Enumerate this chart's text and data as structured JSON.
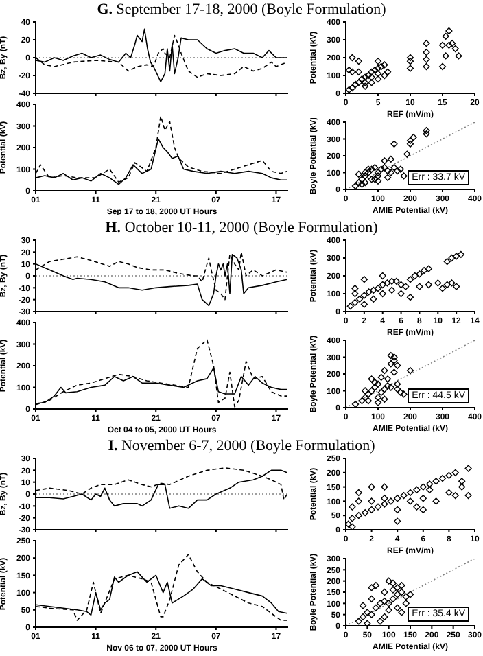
{
  "chart_data": [
    {
      "type": "line",
      "title": "G. September 17-18, 2000 (Boyle Formulation)",
      "ylabel": "Bz, By (nT)",
      "xlim": [
        "2000-09-17T01:00",
        "2000-09-18T19:00"
      ],
      "xticks": [
        {
          "value": "2000-09-17T01:00",
          "label": null
        },
        {
          "value": "2000-09-17T11:00",
          "label": null
        },
        {
          "value": "2000-09-17T21:00",
          "label": null
        },
        {
          "value": "2000-09-18T07:00",
          "label": null
        },
        {
          "value": "2000-09-18T17:00",
          "label": null
        }
      ],
      "ylim": [
        -40,
        40
      ],
      "yticks": [
        -40,
        -20,
        0,
        20,
        40
      ],
      "tick_labels": "y",
      "ref_lines": [
        {
          "axis": "y",
          "value": 0,
          "line_style": "dotted",
          "color": "#808080"
        }
      ],
      "series": [
        {
          "color": "#000000",
          "line_style": "solid",
          "x": [
            "2000-09-17T01:00",
            "2000-09-17T02:30",
            "2000-09-17T04:06",
            "2000-09-17T05:36",
            "2000-09-17T07:12",
            "2000-09-17T08:42",
            "2000-09-17T10:12",
            "2000-09-17T11:48",
            "2000-09-17T13:18",
            "2000-09-17T14:48",
            "2000-09-17T16:00",
            "2000-09-17T16:48",
            "2000-09-17T17:30",
            "2000-09-17T17:54",
            "2000-09-17T18:42",
            "2000-09-17T19:06",
            "2000-09-17T19:36",
            "2000-09-17T20:06",
            "2000-09-17T20:36",
            "2000-09-17T21:48",
            "2000-09-17T22:30",
            "2000-09-17T22:54",
            "2000-09-17T23:18",
            "2000-09-17T23:42",
            "2000-09-18T00:06",
            "2000-09-18T00:42",
            "2000-09-18T01:12",
            "2000-09-18T02:24",
            "2000-09-18T03:54",
            "2000-09-18T04:42",
            "2000-09-18T05:30",
            "2000-09-18T07:00",
            "2000-09-18T08:30",
            "2000-09-18T10:06",
            "2000-09-18T11:36",
            "2000-09-18T13:12",
            "2000-09-18T14:42",
            "2000-09-18T15:48",
            "2000-09-18T17:00",
            "2000-09-18T18:48"
          ],
          "values": [
            -3,
            -5,
            0,
            -3,
            2,
            5,
            0,
            3,
            -2,
            -5,
            5,
            0,
            15,
            25,
            18,
            32,
            10,
            -5,
            -10,
            -27,
            -18,
            10,
            -15,
            15,
            -18,
            0,
            22,
            20,
            20,
            15,
            10,
            5,
            8,
            10,
            5,
            5,
            0,
            8,
            0,
            0
          ]
        },
        {
          "color": "#000000",
          "line_style": "dashed",
          "x": [
            "2000-09-17T01:00",
            "2000-09-17T02:30",
            "2000-09-17T04:06",
            "2000-09-17T07:12",
            "2000-09-17T11:00",
            "2000-09-17T14:48",
            "2000-09-17T16:24",
            "2000-09-17T17:54",
            "2000-09-17T19:30",
            "2000-09-17T20:36",
            "2000-09-17T21:24",
            "2000-09-17T22:12",
            "2000-09-17T22:30",
            "2000-09-17T23:18",
            "2000-09-18T00:06",
            "2000-09-18T00:42",
            "2000-09-18T01:12",
            "2000-09-18T02:24",
            "2000-09-18T03:54",
            "2000-09-18T05:30",
            "2000-09-18T07:48",
            "2000-09-18T10:06",
            "2000-09-18T11:36",
            "2000-09-18T13:12",
            "2000-09-18T14:42",
            "2000-09-18T16:12",
            "2000-09-18T17:00",
            "2000-09-18T18:48"
          ],
          "values": [
            0,
            -8,
            -10,
            -5,
            -3,
            -5,
            -15,
            -10,
            -8,
            -10,
            5,
            10,
            5,
            0,
            25,
            15,
            5,
            -15,
            -22,
            -18,
            -20,
            -18,
            -10,
            -15,
            -12,
            -5,
            -10,
            -5
          ]
        }
      ]
    },
    {
      "type": "line",
      "xlabel": "Sep 17 to 18, 2000 UT Hours",
      "ylabel": "Potential (kV)",
      "xlim": [
        "2000-09-17T01:00",
        "2000-09-18T19:00"
      ],
      "xticks": [
        {
          "value": "2000-09-17T01:00",
          "label": "01"
        },
        {
          "value": "2000-09-17T11:00",
          "label": "11"
        },
        {
          "value": "2000-09-17T21:00",
          "label": "21"
        },
        {
          "value": "2000-09-18T07:00",
          "label": "07"
        },
        {
          "value": "2000-09-18T17:00",
          "label": "17"
        }
      ],
      "ylim": [
        0,
        400
      ],
      "yticks": [
        0,
        100,
        200,
        300,
        400
      ],
      "series": [
        {
          "color": "#000000",
          "line_style": "solid",
          "x": [
            "2000-09-17T01:00",
            "2000-09-17T02:30",
            "2000-09-17T04:06",
            "2000-09-17T05:36",
            "2000-09-17T07:12",
            "2000-09-17T08:42",
            "2000-09-17T10:12",
            "2000-09-17T11:48",
            "2000-09-17T13:18",
            "2000-09-17T14:48",
            "2000-09-17T16:00",
            "2000-09-17T17:12",
            "2000-09-17T18:42",
            "2000-09-17T20:12",
            "2000-09-17T21:24",
            "2000-09-17T22:12",
            "2000-09-17T22:54",
            "2000-09-17T23:42",
            "2000-09-18T00:42",
            "2000-09-18T01:36",
            "2000-09-18T03:12",
            "2000-09-18T05:30",
            "2000-09-18T07:48",
            "2000-09-18T10:06",
            "2000-09-18T12:24",
            "2000-09-18T14:42",
            "2000-09-18T16:12",
            "2000-09-18T17:48",
            "2000-09-18T18:48"
          ],
          "values": [
            60,
            70,
            60,
            80,
            50,
            60,
            45,
            80,
            60,
            30,
            60,
            120,
            80,
            100,
            240,
            200,
            180,
            150,
            160,
            100,
            90,
            80,
            90,
            80,
            90,
            80,
            60,
            50,
            50
          ]
        },
        {
          "color": "#000000",
          "line_style": "dashed",
          "x": [
            "2000-09-17T01:00",
            "2000-09-17T01:48",
            "2000-09-17T03:18",
            "2000-09-17T05:36",
            "2000-09-17T07:54",
            "2000-09-17T11:00",
            "2000-09-17T13:18",
            "2000-09-17T14:48",
            "2000-09-17T16:24",
            "2000-09-17T17:30",
            "2000-09-17T19:30",
            "2000-09-17T21:00",
            "2000-09-17T21:48",
            "2000-09-17T22:30",
            "2000-09-17T23:18",
            "2000-09-18T00:06",
            "2000-09-18T00:48",
            "2000-09-18T02:24",
            "2000-09-18T04:42",
            "2000-09-18T07:48",
            "2000-09-18T10:06",
            "2000-09-18T12:24",
            "2000-09-18T14:42",
            "2000-09-18T16:12",
            "2000-09-18T17:48",
            "2000-09-18T18:48"
          ],
          "values": [
            80,
            120,
            60,
            70,
            60,
            60,
            100,
            40,
            60,
            130,
            90,
            200,
            345,
            280,
            320,
            200,
            150,
            110,
            90,
            80,
            100,
            120,
            140,
            90,
            80,
            90
          ]
        }
      ]
    },
    {
      "type": "scatter",
      "xlabel": "REF (mV/m)",
      "ylabel": "Potential (kV)",
      "xlim": [
        0,
        20
      ],
      "xticks": [
        0,
        5,
        10,
        15,
        20
      ],
      "ylim": [
        0,
        400
      ],
      "yticks": [
        0,
        100,
        200,
        300,
        400
      ],
      "series": [
        {
          "color": "#000000",
          "marker": "diamond",
          "x": [
            0.5,
            1,
            1,
            1.5,
            2,
            2,
            2.5,
            3,
            3,
            3.5,
            4,
            4,
            4.5,
            5,
            5,
            5.5,
            6,
            6,
            6.5,
            1,
            2,
            3,
            4,
            5,
            10,
            10,
            10,
            12.5,
            12.5,
            12.5,
            12.5,
            15,
            15,
            15.5,
            15.5,
            16,
            16.5,
            16,
            17,
            17.5,
            5,
            0.5
          ],
          "values": [
            20,
            30,
            200,
            50,
            60,
            180,
            80,
            90,
            40,
            100,
            120,
            60,
            130,
            140,
            80,
            150,
            160,
            100,
            120,
            120,
            120,
            60,
            90,
            110,
            140,
            180,
            200,
            150,
            190,
            230,
            280,
            150,
            270,
            320,
            210,
            350,
            280,
            270,
            250,
            210,
            180,
            130
          ]
        }
      ]
    },
    {
      "type": "scatter",
      "xlabel": "AMIE Potential (kV)",
      "ylabel": "Boyle Potential (kV)",
      "xlim": [
        0,
        400
      ],
      "xticks": [
        0,
        100,
        200,
        300,
        400
      ],
      "ylim": [
        0,
        400
      ],
      "yticks": [
        0,
        100,
        200,
        300,
        400
      ],
      "annotations": [
        "Err : 33.7 kV"
      ],
      "series": [
        {
          "color": "#000000",
          "marker": "diamond",
          "x": [
            30,
            40,
            50,
            60,
            70,
            80,
            90,
            100,
            60,
            50,
            80,
            100,
            110,
            120,
            70,
            40,
            90,
            130,
            140,
            150,
            150,
            160,
            170,
            180,
            190,
            200,
            200,
            210,
            250,
            250,
            120,
            140,
            60,
            100,
            130
          ],
          "values": [
            20,
            40,
            60,
            80,
            100,
            120,
            130,
            100,
            40,
            30,
            60,
            80,
            120,
            130,
            120,
            90,
            60,
            110,
            100,
            270,
            130,
            110,
            120,
            80,
            210,
            270,
            290,
            310,
            330,
            350,
            170,
            180,
            100,
            50,
            70
          ]
        },
        {
          "type": "line",
          "color": "#808080",
          "line_style": "dotted",
          "x": [
            0,
            400
          ],
          "values": [
            0,
            400
          ]
        }
      ]
    },
    {
      "type": "line",
      "title": "H. October 10-11, 2000 (Boyle Formulation)",
      "ylabel": "Bz, By (nT)",
      "xlim": [
        "2000-10-04T01:00",
        "2000-10-05T19:00"
      ],
      "xticks": [
        {
          "value": "2000-10-04T01:00",
          "label": null
        },
        {
          "value": "2000-10-04T11:00",
          "label": null
        },
        {
          "value": "2000-10-04T21:00",
          "label": null
        },
        {
          "value": "2000-10-05T07:00",
          "label": null
        },
        {
          "value": "2000-10-05T17:00",
          "label": null
        }
      ],
      "ylim": [
        -30,
        30
      ],
      "yticks": [
        -30,
        -20,
        -10,
        0,
        10,
        20,
        30
      ],
      "tick_labels": "y",
      "ref_lines": [
        {
          "axis": "y",
          "value": 0,
          "line_style": "dotted",
          "color": "#808080"
        }
      ],
      "series": [
        {
          "color": "#000000",
          "line_style": "solid",
          "x": [
            "2000-10-04T01:00",
            "2000-10-04T03:18",
            "2000-10-04T05:36",
            "2000-10-04T07:12",
            "2000-10-04T07:54",
            "2000-10-04T10:12",
            "2000-10-04T12:30",
            "2000-10-04T14:48",
            "2000-10-04T16:24",
            "2000-10-04T18:42",
            "2000-10-04T21:00",
            "2000-10-04T23:18",
            "2000-10-05T02:24",
            "2000-10-05T03:54",
            "2000-10-05T04:42",
            "2000-10-05T05:48",
            "2000-10-05T06:36",
            "2000-10-05T07:00",
            "2000-10-05T07:24",
            "2000-10-05T07:48",
            "2000-10-05T08:12",
            "2000-10-05T08:30",
            "2000-10-05T08:54",
            "2000-10-05T09:18",
            "2000-10-05T09:42",
            "2000-10-05T10:30",
            "2000-10-05T11:12",
            "2000-10-05T11:36",
            "2000-10-05T12:24",
            "2000-10-05T14:42",
            "2000-10-05T17:00",
            "2000-10-05T18:48"
          ],
          "values": [
            10,
            5,
            0,
            -3,
            -2,
            -3,
            -5,
            -10,
            -10,
            -12,
            -10,
            -9,
            -8,
            -7,
            -20,
            -25,
            -15,
            0,
            10,
            5,
            10,
            0,
            10,
            -15,
            18,
            15,
            5,
            -15,
            -10,
            -8,
            -5,
            -3
          ]
        },
        {
          "color": "#000000",
          "line_style": "dashed",
          "x": [
            "2000-10-04T01:00",
            "2000-10-04T03:18",
            "2000-10-04T05:36",
            "2000-10-04T07:54",
            "2000-10-04T10:12",
            "2000-10-04T13:18",
            "2000-10-04T14:48",
            "2000-10-04T16:24",
            "2000-10-04T17:54",
            "2000-10-04T20:12",
            "2000-10-04T22:30",
            "2000-10-05T00:48",
            "2000-10-05T03:12",
            "2000-10-05T03:54",
            "2000-10-05T04:42",
            "2000-10-05T05:30",
            "2000-10-05T05:48",
            "2000-10-05T06:12",
            "2000-10-05T07:00",
            "2000-10-05T07:48",
            "2000-10-05T08:30",
            "2000-10-05T08:54",
            "2000-10-05T09:18",
            "2000-10-05T10:06",
            "2000-10-05T10:48",
            "2000-10-05T11:12",
            "2000-10-05T12:00",
            "2000-10-05T13:12",
            "2000-10-05T14:42",
            "2000-10-05T17:00",
            "2000-10-05T18:48"
          ],
          "values": [
            5,
            12,
            14,
            16,
            13,
            8,
            12,
            10,
            7,
            5,
            5,
            2,
            0,
            0,
            -5,
            10,
            15,
            5,
            -12,
            -15,
            -20,
            0,
            18,
            10,
            5,
            20,
            0,
            5,
            0,
            5,
            3
          ]
        }
      ]
    },
    {
      "type": "line",
      "xlabel": "Oct 04 to 05, 2000 UT Hours",
      "ylabel": "Potential (kV)",
      "xlim": [
        "2000-10-04T01:00",
        "2000-10-05T19:00"
      ],
      "xticks": [
        {
          "value": "2000-10-04T01:00",
          "label": "01"
        },
        {
          "value": "2000-10-04T11:00",
          "label": "11"
        },
        {
          "value": "2000-10-04T21:00",
          "label": "21"
        },
        {
          "value": "2000-10-05T07:00",
          "label": "07"
        },
        {
          "value": "2000-10-05T17:00",
          "label": "17"
        }
      ],
      "ylim": [
        0,
        400
      ],
      "yticks": [
        0,
        100,
        200,
        300,
        400
      ],
      "series": [
        {
          "color": "#000000",
          "line_style": "solid",
          "x": [
            "2000-10-04T01:00",
            "2000-10-04T02:30",
            "2000-10-04T04:06",
            "2000-10-04T05:12",
            "2000-10-04T06:00",
            "2000-10-04T07:54",
            "2000-10-04T10:12",
            "2000-10-04T12:30",
            "2000-10-04T14:06",
            "2000-10-04T15:36",
            "2000-10-04T17:12",
            "2000-10-04T18:42",
            "2000-10-04T21:00",
            "2000-10-04T23:18",
            "2000-10-05T01:36",
            "2000-10-05T03:54",
            "2000-10-05T05:30",
            "2000-10-05T06:36",
            "2000-10-05T07:24",
            "2000-10-05T08:30",
            "2000-10-05T10:06",
            "2000-10-05T11:12",
            "2000-10-05T12:24",
            "2000-10-05T13:30",
            "2000-10-05T14:42",
            "2000-10-05T16:12",
            "2000-10-05T17:48",
            "2000-10-05T18:48"
          ],
          "values": [
            25,
            30,
            60,
            100,
            75,
            80,
            100,
            110,
            150,
            130,
            150,
            120,
            120,
            110,
            100,
            130,
            140,
            190,
            80,
            70,
            70,
            150,
            110,
            150,
            120,
            100,
            90,
            90
          ]
        },
        {
          "color": "#000000",
          "line_style": "dashed",
          "x": [
            "2000-10-04T01:00",
            "2000-10-04T03:18",
            "2000-10-04T05:36",
            "2000-10-04T07:54",
            "2000-10-04T10:12",
            "2000-10-04T12:30",
            "2000-10-04T14:48",
            "2000-10-04T17:12",
            "2000-10-04T19:30",
            "2000-10-04T21:48",
            "2000-10-05T00:06",
            "2000-10-05T02:24",
            "2000-10-05T03:54",
            "2000-10-05T05:30",
            "2000-10-05T06:36",
            "2000-10-05T07:24",
            "2000-10-05T08:30",
            "2000-10-05T09:18",
            "2000-10-05T10:06",
            "2000-10-05T10:48",
            "2000-10-05T12:00",
            "2000-10-05T13:12",
            "2000-10-05T14:42",
            "2000-10-05T16:12",
            "2000-10-05T17:48",
            "2000-10-05T18:48"
          ],
          "values": [
            20,
            40,
            80,
            110,
            120,
            140,
            160,
            150,
            130,
            120,
            110,
            100,
            280,
            320,
            200,
            30,
            50,
            170,
            10,
            40,
            220,
            140,
            150,
            80,
            60,
            60
          ]
        }
      ]
    },
    {
      "type": "scatter",
      "xlabel": "REF (mV/m)",
      "ylabel": "Potential (kV)",
      "xlim": [
        0,
        14
      ],
      "xticks": [
        0,
        2,
        4,
        6,
        8,
        10,
        12,
        14
      ],
      "ylim": [
        0,
        400
      ],
      "yticks": [
        0,
        100,
        200,
        300,
        400
      ],
      "series": [
        {
          "color": "#000000",
          "marker": "diamond",
          "x": [
            0.5,
            1,
            1,
            1.5,
            2,
            2,
            2.5,
            3,
            3,
            3.5,
            4,
            4,
            4.5,
            5,
            5,
            5.5,
            6,
            6,
            4,
            1,
            7,
            7.5,
            8,
            8.5,
            9,
            9,
            8,
            7,
            10,
            11,
            11.5,
            12,
            12.5,
            11,
            11.5,
            12,
            10.5,
            6.5,
            2
          ],
          "values": [
            30,
            50,
            100,
            70,
            90,
            40,
            110,
            120,
            70,
            130,
            150,
            100,
            160,
            170,
            120,
            170,
            150,
            100,
            200,
            130,
            180,
            200,
            210,
            230,
            240,
            150,
            140,
            80,
            160,
            280,
            300,
            310,
            320,
            150,
            160,
            140,
            130,
            140,
            180
          ]
        }
      ]
    },
    {
      "type": "scatter",
      "xlabel": "AMIE Potential (kV)",
      "ylabel": "Boyle Potential (kV)",
      "xlim": [
        0,
        400
      ],
      "xticks": [
        0,
        100,
        200,
        300,
        400
      ],
      "ylim": [
        0,
        400
      ],
      "yticks": [
        0,
        100,
        200,
        300,
        400
      ],
      "annotations": [
        "Err : 44.5 kV"
      ],
      "series": [
        {
          "color": "#000000",
          "marker": "diamond",
          "x": [
            30,
            50,
            60,
            70,
            80,
            90,
            100,
            80,
            100,
            110,
            120,
            130,
            140,
            150,
            140,
            150,
            140,
            160,
            150,
            120,
            160,
            200,
            170,
            180,
            120,
            90,
            110,
            70,
            60,
            130,
            160,
            100
          ],
          "values": [
            20,
            40,
            60,
            80,
            100,
            120,
            140,
            170,
            60,
            90,
            110,
            130,
            120,
            300,
            310,
            280,
            260,
            250,
            210,
            220,
            110,
            220,
            90,
            80,
            50,
            150,
            180,
            40,
            100,
            170,
            140,
            30
          ]
        },
        {
          "type": "line",
          "color": "#808080",
          "line_style": "dotted",
          "x": [
            0,
            400
          ],
          "values": [
            0,
            400
          ]
        }
      ]
    },
    {
      "type": "line",
      "title": "I. November 6-7, 2000 (Boyle Formulation)",
      "ylabel": "Bz, By (nT)",
      "xlim": [
        "2000-11-06T01:00",
        "2000-11-07T19:00"
      ],
      "xticks": [
        {
          "value": "2000-11-06T01:00",
          "label": null
        },
        {
          "value": "2000-11-06T11:00",
          "label": null
        },
        {
          "value": "2000-11-06T21:00",
          "label": null
        },
        {
          "value": "2000-11-07T07:00",
          "label": null
        },
        {
          "value": "2000-11-07T17:00",
          "label": null
        }
      ],
      "ylim": [
        -30,
        30
      ],
      "yticks": [
        -30,
        -20,
        -10,
        0,
        10,
        20,
        30
      ],
      "tick_labels": "y",
      "ref_lines": [
        {
          "axis": "y",
          "value": 0,
          "line_style": "dotted",
          "color": "#808080"
        }
      ],
      "series": [
        {
          "color": "#000000",
          "line_style": "solid",
          "x": [
            "2000-11-06T01:00",
            "2000-11-06T03:18",
            "2000-11-06T05:36",
            "2000-11-06T07:12",
            "2000-11-06T08:42",
            "2000-11-06T10:12",
            "2000-11-06T11:00",
            "2000-11-06T11:48",
            "2000-11-06T12:30",
            "2000-11-06T13:18",
            "2000-11-06T14:06",
            "2000-11-06T15:36",
            "2000-11-06T17:54",
            "2000-11-06T18:42",
            "2000-11-06T20:12",
            "2000-11-06T21:24",
            "2000-11-06T22:30",
            "2000-11-06T23:18",
            "2000-11-07T00:48",
            "2000-11-07T02:24",
            "2000-11-07T03:54",
            "2000-11-07T05:30",
            "2000-11-07T07:00",
            "2000-11-07T09:18",
            "2000-11-07T10:48",
            "2000-11-07T13:12",
            "2000-11-07T14:42",
            "2000-11-07T16:12",
            "2000-11-07T17:48",
            "2000-11-07T18:48"
          ],
          "values": [
            -3,
            -3,
            -4,
            -2,
            0,
            -5,
            0,
            -2,
            5,
            -5,
            -10,
            -8,
            -8,
            -10,
            -5,
            8,
            8,
            -12,
            -10,
            -12,
            -5,
            -5,
            0,
            5,
            10,
            12,
            15,
            20,
            20,
            18
          ]
        },
        {
          "color": "#000000",
          "line_style": "dashed",
          "x": [
            "2000-11-06T01:00",
            "2000-11-06T03:18",
            "2000-11-06T06:24",
            "2000-11-06T08:42",
            "2000-11-06T10:12",
            "2000-11-06T11:48",
            "2000-11-06T14:06",
            "2000-11-06T16:24",
            "2000-11-06T18:42",
            "2000-11-06T20:12",
            "2000-11-06T21:48",
            "2000-11-06T23:18",
            "2000-11-07T02:24",
            "2000-11-07T05:30",
            "2000-11-07T08:30",
            "2000-11-07T11:36",
            "2000-11-07T14:42",
            "2000-11-07T16:12",
            "2000-11-07T17:48",
            "2000-11-07T18:18",
            "2000-11-07T18:48"
          ],
          "values": [
            3,
            5,
            3,
            0,
            5,
            8,
            8,
            12,
            8,
            6,
            9,
            8,
            15,
            20,
            22,
            20,
            15,
            12,
            8,
            -5,
            0
          ]
        }
      ]
    },
    {
      "type": "line",
      "xlabel": "Nov 06 to 07, 2000 UT Hours",
      "ylabel": "Potential (kV)",
      "xlim": [
        "2000-11-06T01:00",
        "2000-11-07T19:00"
      ],
      "xticks": [
        {
          "value": "2000-11-06T01:00",
          "label": "01"
        },
        {
          "value": "2000-11-06T11:00",
          "label": "11"
        },
        {
          "value": "2000-11-06T21:00",
          "label": "21"
        },
        {
          "value": "2000-11-07T07:00",
          "label": "07"
        },
        {
          "value": "2000-11-07T17:00",
          "label": "17"
        }
      ],
      "ylim": [
        0,
        250
      ],
      "yticks": [
        0,
        50,
        100,
        150,
        200,
        250
      ],
      "series": [
        {
          "color": "#000000",
          "line_style": "solid",
          "x": [
            "2000-11-06T01:00",
            "2000-11-06T03:18",
            "2000-11-06T05:36",
            "2000-11-06T07:54",
            "2000-11-06T09:30",
            "2000-11-06T10:12",
            "2000-11-06T11:00",
            "2000-11-06T11:48",
            "2000-11-06T12:30",
            "2000-11-06T13:18",
            "2000-11-06T14:06",
            "2000-11-06T14:48",
            "2000-11-06T16:24",
            "2000-11-06T17:54",
            "2000-11-06T19:30",
            "2000-11-06T21:00",
            "2000-11-06T22:12",
            "2000-11-06T22:54",
            "2000-11-06T23:42",
            "2000-11-07T01:36",
            "2000-11-07T03:12",
            "2000-11-07T04:42",
            "2000-11-07T06:12",
            "2000-11-07T07:48",
            "2000-11-07T10:06",
            "2000-11-07T12:24",
            "2000-11-07T14:42",
            "2000-11-07T16:12",
            "2000-11-07T17:24",
            "2000-11-07T18:48"
          ],
          "values": [
            65,
            60,
            55,
            50,
            45,
            35,
            100,
            50,
            70,
            80,
            145,
            130,
            150,
            160,
            130,
            150,
            100,
            130,
            70,
            90,
            110,
            140,
            120,
            120,
            110,
            100,
            90,
            70,
            45,
            40
          ]
        },
        {
          "color": "#000000",
          "line_style": "dashed",
          "x": [
            "2000-11-06T01:00",
            "2000-11-06T03:18",
            "2000-11-06T07:12",
            "2000-11-06T07:54",
            "2000-11-06T09:30",
            "2000-11-06T10:36",
            "2000-11-06T11:48",
            "2000-11-06T14:06",
            "2000-11-06T16:24",
            "2000-11-06T18:42",
            "2000-11-06T20:12",
            "2000-11-06T21:48",
            "2000-11-06T22:12",
            "2000-11-06T23:18",
            "2000-11-07T00:48",
            "2000-11-07T02:24",
            "2000-11-07T03:54",
            "2000-11-07T05:30",
            "2000-11-07T07:48",
            "2000-11-07T10:06",
            "2000-11-07T12:24",
            "2000-11-07T14:42",
            "2000-11-07T16:12",
            "2000-11-07T17:48",
            "2000-11-07T18:48"
          ],
          "values": [
            60,
            55,
            50,
            20,
            50,
            130,
            40,
            140,
            150,
            140,
            130,
            30,
            30,
            80,
            180,
            210,
            160,
            130,
            110,
            90,
            70,
            60,
            40,
            20,
            20
          ]
        }
      ]
    },
    {
      "type": "scatter",
      "xlabel": "REF (mV/m)",
      "ylabel": "Potential (kV)",
      "xlim": [
        0,
        10
      ],
      "xticks": [
        0,
        2,
        4,
        6,
        8,
        10
      ],
      "ylim": [
        0,
        250
      ],
      "yticks": [
        0,
        50,
        100,
        150,
        200,
        250
      ],
      "series": [
        {
          "color": "#000000",
          "marker": "diamond",
          "x": [
            0.2,
            0.5,
            0.5,
            1,
            1,
            1.5,
            2,
            2,
            2.5,
            3,
            3,
            3.5,
            4,
            4,
            4.5,
            5,
            5,
            5.5,
            6,
            6,
            6.5,
            7,
            7,
            7.5,
            8,
            8,
            8.5,
            8.5,
            9,
            9,
            9.5,
            9.5,
            5.5,
            6,
            2,
            1,
            3,
            4,
            0.5,
            6.5
          ],
          "values": [
            20,
            40,
            80,
            50,
            100,
            60,
            70,
            100,
            80,
            90,
            110,
            100,
            110,
            70,
            120,
            130,
            100,
            140,
            150,
            110,
            160,
            170,
            100,
            180,
            190,
            130,
            120,
            200,
            170,
            150,
            215,
            120,
            80,
            70,
            150,
            130,
            150,
            30,
            10,
            140
          ]
        }
      ]
    },
    {
      "type": "scatter",
      "xlabel": "AMIE Potential (kV)",
      "ylabel": "Boyle Potential (kV)",
      "xlim": [
        0,
        300
      ],
      "xticks": [
        0,
        50,
        100,
        150,
        200,
        250,
        300
      ],
      "ylim": [
        0,
        300
      ],
      "yticks": [
        0,
        50,
        100,
        150,
        200,
        250,
        300
      ],
      "annotations": [
        "Err : 35.4 kV"
      ],
      "series": [
        {
          "color": "#000000",
          "marker": "diamond",
          "x": [
            30,
            40,
            50,
            60,
            70,
            80,
            60,
            70,
            90,
            100,
            110,
            120,
            130,
            140,
            110,
            100,
            120,
            130,
            90,
            80,
            50,
            40,
            100,
            120,
            150,
            110,
            130,
            60,
            90,
            140
          ],
          "values": [
            20,
            40,
            60,
            50,
            80,
            100,
            170,
            180,
            150,
            200,
            190,
            170,
            150,
            130,
            120,
            100,
            80,
            60,
            40,
            20,
            10,
            90,
            70,
            140,
            140,
            160,
            180,
            120,
            110,
            100
          ]
        },
        {
          "type": "line",
          "color": "#808080",
          "line_style": "dotted",
          "x": [
            0,
            300
          ],
          "values": [
            0,
            300
          ]
        }
      ]
    }
  ]
}
